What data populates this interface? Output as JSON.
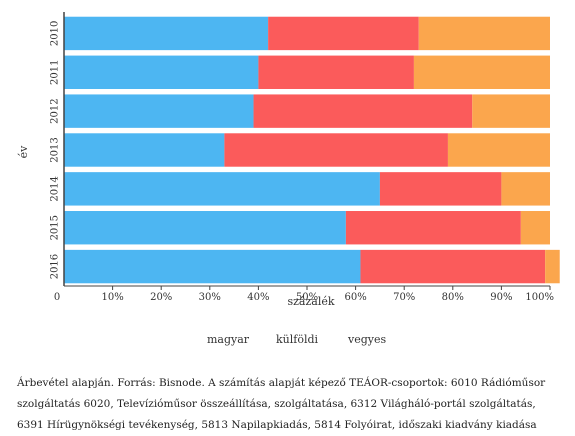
{
  "chart_data": {
    "type": "bar",
    "orientation": "horizontal",
    "stacked": true,
    "categories": [
      "2010",
      "2011",
      "2012",
      "2013",
      "2014",
      "2015",
      "2016"
    ],
    "series": [
      {
        "name": "magyar",
        "color": "#4db6f2",
        "values": [
          42,
          40,
          39,
          33,
          65,
          58,
          61
        ]
      },
      {
        "name": "külföldi",
        "color": "#fb5b5b",
        "values": [
          31,
          32,
          45,
          46,
          25,
          36,
          38
        ]
      },
      {
        "name": "vegyes",
        "color": "#fba64d",
        "values": [
          27,
          28,
          16,
          21,
          10,
          6,
          3
        ]
      }
    ],
    "x_ticks": [
      "0",
      "10%",
      "20%",
      "30%",
      "40%",
      "50%",
      "60%",
      "70%",
      "80%",
      "90%",
      "100%"
    ],
    "xlim": [
      0,
      100
    ],
    "xlabel": "százalék",
    "ylabel": "év",
    "legend": "bottom-center",
    "grid": false
  },
  "caption": "Árbevétel alapján. Forrás: Bisnode. A számítás alapját képező TEÁOR-csoportok: 6010 Rádióműsor szolgáltatás 6020, Televízióműsor összeállítása, szolgáltatása, 6312 Világháló-portál szolgáltatás, 6391 Hírügynökségi tevékenység, 5813 Napilapkiadás, 5814 Folyóirat, időszaki kiadvány kiadása"
}
